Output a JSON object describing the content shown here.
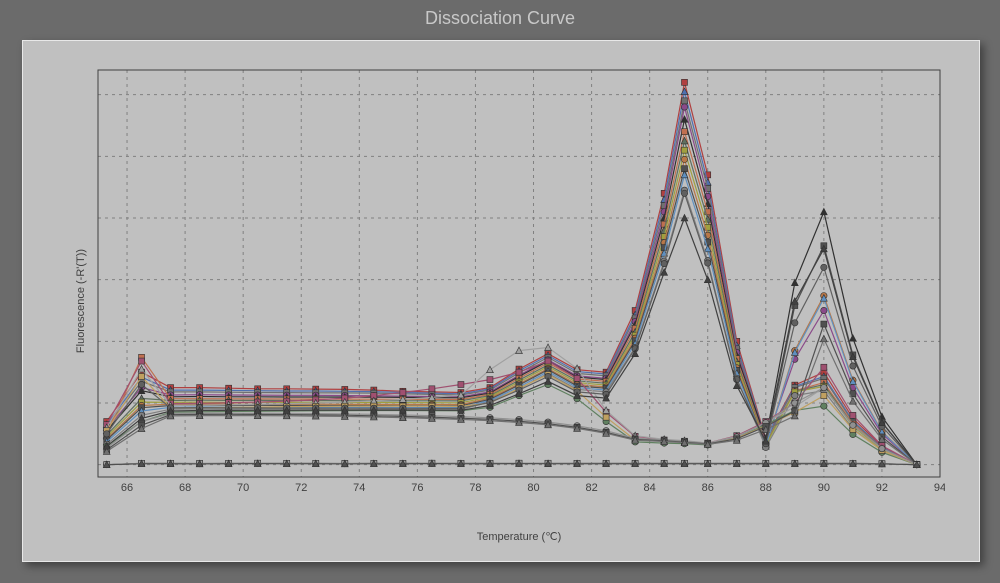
{
  "title": "Dissociation Curve",
  "axes": {
    "xlabel": "Temperature (℃)",
    "ylabel": "Fluorescence (-R'(T))",
    "xlim": [
      65,
      94
    ],
    "ylim": [
      -200,
      6400
    ],
    "xticks": [
      66,
      68,
      70,
      72,
      74,
      76,
      78,
      80,
      82,
      84,
      86,
      88,
      90,
      92,
      94
    ],
    "yticks": [
      0,
      1000,
      2000,
      3000,
      4000,
      5000,
      6000
    ],
    "grid_color": "#808080",
    "grid_dash": "3,4",
    "plot_bg": "#c0c0c0",
    "outer_bg": "#6b6b6b",
    "panel_bg": "#c0c0c0",
    "axis_color": "#404040",
    "tick_fontsize": 11,
    "label_fontsize": 11,
    "title_fontsize": 18,
    "title_color": "#c8c8c8"
  },
  "x": [
    65.3,
    66.5,
    67.5,
    68.5,
    69.5,
    70.5,
    71.5,
    72.5,
    73.5,
    74.5,
    75.5,
    76.5,
    77.5,
    78.5,
    79.5,
    80.5,
    81.5,
    82.5,
    83.5,
    84.5,
    85.2,
    86.0,
    87.0,
    88.0,
    89.0,
    90.0,
    91.0,
    92.0,
    93.2
  ],
  "series": [
    {
      "color": "#b04040",
      "marker": "sq",
      "y": [
        700,
        1500,
        1250,
        1250,
        1240,
        1230,
        1230,
        1225,
        1220,
        1210,
        1190,
        1180,
        1170,
        1250,
        1550,
        1800,
        1540,
        1500,
        2500,
        4400,
        6200,
        4700,
        2000,
        420,
        1290,
        1500,
        750,
        300,
        0
      ]
    },
    {
      "color": "#5070b0",
      "marker": "tri",
      "y": [
        650,
        1420,
        1210,
        1210,
        1205,
        1200,
        1195,
        1195,
        1190,
        1185,
        1170,
        1160,
        1150,
        1230,
        1520,
        1770,
        1510,
        1470,
        2430,
        4300,
        6050,
        4580,
        1930,
        400,
        1270,
        1430,
        710,
        280,
        0
      ]
    },
    {
      "color": "#707070",
      "marker": "sq",
      "y": [
        620,
        1350,
        1180,
        1180,
        1175,
        1170,
        1168,
        1165,
        1163,
        1160,
        1150,
        1140,
        1130,
        1210,
        1490,
        1740,
        1480,
        1440,
        2380,
        4200,
        5900,
        4480,
        1880,
        380,
        1250,
        1400,
        690,
        270,
        0
      ]
    },
    {
      "color": "#8a4a8a",
      "marker": "circ",
      "y": [
        580,
        1250,
        1130,
        1135,
        1130,
        1128,
        1125,
        1125,
        1120,
        1118,
        1110,
        1105,
        1100,
        1180,
        1450,
        1700,
        1440,
        1400,
        2320,
        4100,
        5800,
        4350,
        1820,
        360,
        1710,
        2500,
        1250,
        500,
        0
      ]
    },
    {
      "color": "#303030",
      "marker": "tri",
      "y": [
        550,
        1200,
        1100,
        1105,
        1100,
        1100,
        1098,
        1098,
        1095,
        1095,
        1090,
        1088,
        1085,
        1160,
        1430,
        1680,
        1420,
        1380,
        2270,
        4000,
        5600,
        4230,
        1770,
        420,
        2950,
        4100,
        2050,
        780,
        0
      ]
    },
    {
      "color": "#c07050",
      "marker": "sq",
      "y": [
        510,
        1740,
        1070,
        1070,
        1068,
        1067,
        1065,
        1065,
        1063,
        1062,
        1060,
        1058,
        1056,
        1140,
        1400,
        1650,
        1390,
        1350,
        2210,
        3900,
        5400,
        4100,
        1720,
        340,
        1200,
        1330,
        660,
        260,
        0
      ]
    },
    {
      "color": "#607060",
      "marker": "tri",
      "y": [
        480,
        1074,
        1040,
        1045,
        1042,
        1042,
        1040,
        1040,
        1038,
        1038,
        1036,
        1035,
        1034,
        1120,
        1370,
        1620,
        1360,
        1320,
        2150,
        3800,
        5250,
        3980,
        1670,
        330,
        1190,
        1300,
        640,
        255,
        0
      ]
    },
    {
      "color": "#a0a040",
      "marker": "sq",
      "y": [
        450,
        1014,
        1010,
        1015,
        1012,
        1012,
        1010,
        1010,
        1008,
        1008,
        1006,
        1005,
        1004,
        1100,
        1340,
        1590,
        1330,
        1290,
        2100,
        3700,
        5100,
        3850,
        1620,
        320,
        1180,
        1270,
        620,
        250,
        0
      ]
    },
    {
      "color": "#b87848",
      "marker": "circ",
      "y": [
        420,
        960,
        980,
        985,
        982,
        982,
        980,
        980,
        978,
        978,
        976,
        975,
        974,
        1080,
        1310,
        1560,
        1300,
        1260,
        2050,
        3600,
        4950,
        3720,
        1570,
        310,
        1850,
        2740,
        1370,
        540,
        0
      ]
    },
    {
      "color": "#505050",
      "marker": "sq",
      "y": [
        400,
        924,
        960,
        965,
        963,
        962,
        960,
        960,
        958,
        958,
        956,
        955,
        955,
        1060,
        1290,
        1540,
        1275,
        1240,
        2010,
        3520,
        4800,
        3610,
        1530,
        300,
        2580,
        3550,
        1780,
        690,
        0
      ]
    },
    {
      "color": "#6090c0",
      "marker": "tri",
      "y": [
        370,
        870,
        930,
        935,
        933,
        932,
        930,
        930,
        928,
        928,
        926,
        925,
        925,
        1040,
        1260,
        1510,
        1250,
        1210,
        1960,
        3430,
        4700,
        3500,
        1480,
        300,
        1820,
        2700,
        1350,
        530,
        0
      ]
    },
    {
      "color": "#808080",
      "marker": "circ",
      "y": [
        330,
        800,
        900,
        905,
        903,
        902,
        900,
        900,
        898,
        898,
        896,
        895,
        895,
        1020,
        1230,
        1480,
        1220,
        1180,
        1900,
        3300,
        4450,
        3310,
        1400,
        280,
        1120,
        1200,
        580,
        230,
        0
      ]
    },
    {
      "color": "#a05070",
      "marker": "sq",
      "y": [
        650,
        1680,
        990,
        995,
        1005,
        1015,
        1030,
        1050,
        1080,
        1120,
        1170,
        1230,
        1300,
        1380,
        1500,
        1680,
        1400,
        850,
        460,
        400,
        380,
        350,
        470,
        700,
        1000,
        1580,
        800,
        310,
        0
      ]
    },
    {
      "color": "#a0a0a0",
      "marker": "tri",
      "y": [
        600,
        1550,
        960,
        965,
        972,
        980,
        990,
        1000,
        1015,
        1035,
        1060,
        1090,
        1130,
        1540,
        1850,
        1900,
        1560,
        880,
        470,
        410,
        390,
        350,
        460,
        680,
        940,
        1250,
        640,
        260,
        0
      ]
    },
    {
      "color": "#608060",
      "marker": "circ",
      "y": [
        300,
        700,
        850,
        858,
        862,
        866,
        870,
        874,
        876,
        878,
        878,
        876,
        874,
        930,
        1120,
        1300,
        1070,
        700,
        370,
        350,
        340,
        320,
        430,
        650,
        880,
        950,
        490,
        200,
        0
      ]
    },
    {
      "color": "#c0a060",
      "marker": "sq",
      "y": [
        550,
        1430,
        920,
        925,
        930,
        934,
        940,
        945,
        948,
        950,
        950,
        948,
        945,
        1000,
        1240,
        1460,
        1200,
        770,
        400,
        380,
        370,
        340,
        430,
        630,
        850,
        1120,
        570,
        230,
        0
      ]
    },
    {
      "color": "#909090",
      "marker": "circ",
      "y": [
        270,
        700,
        830,
        835,
        835,
        834,
        832,
        828,
        822,
        815,
        805,
        794,
        780,
        760,
        730,
        690,
        630,
        550,
        430,
        400,
        380,
        345,
        450,
        680,
        1000,
        1250,
        640,
        260,
        0
      ]
    },
    {
      "color": "#505050",
      "marker": "sq",
      "y": [
        240,
        640,
        810,
        815,
        816,
        815,
        812,
        808,
        802,
        793,
        782,
        769,
        754,
        735,
        705,
        665,
        605,
        525,
        410,
        385,
        365,
        335,
        420,
        620,
        870,
        2280,
        1150,
        450,
        0
      ]
    },
    {
      "color": "#707070",
      "marker": "tri",
      "y": [
        215,
        585,
        790,
        795,
        796,
        795,
        792,
        788,
        782,
        773,
        762,
        749,
        734,
        715,
        684,
        646,
        588,
        509,
        398,
        375,
        356,
        328,
        395,
        570,
        790,
        2040,
        1030,
        410,
        0
      ]
    },
    {
      "color": "#606060",
      "marker": "circ",
      "y": [
        500,
        1300,
        920,
        925,
        922,
        920,
        918,
        918,
        916,
        915,
        914,
        913,
        912,
        1010,
        1210,
        1430,
        1180,
        1140,
        1880,
        3260,
        4400,
        3270,
        1380,
        340,
        2300,
        3200,
        1600,
        620,
        0
      ]
    },
    {
      "color": "#404040",
      "marker": "tri",
      "y": [
        300,
        750,
        870,
        878,
        880,
        882,
        882,
        884,
        884,
        885,
        885,
        884,
        882,
        960,
        1150,
        1350,
        1120,
        1080,
        1800,
        3120,
        4000,
        3000,
        1280,
        380,
        2650,
        3500,
        1750,
        680,
        0
      ]
    },
    {
      "color": "#404040",
      "marker": "sq",
      "y": [
        0,
        20,
        20,
        18,
        20,
        22,
        20,
        20,
        18,
        20,
        20,
        22,
        20,
        20,
        22,
        21,
        20,
        20,
        20,
        20,
        20,
        20,
        20,
        20,
        20,
        20,
        20,
        15,
        0
      ]
    },
    {
      "color": "#707070",
      "marker": "circ",
      "y": [
        0,
        18,
        18,
        17,
        18,
        20,
        18,
        18,
        17,
        18,
        18,
        20,
        18,
        18,
        20,
        19,
        18,
        18,
        18,
        18,
        18,
        18,
        18,
        18,
        18,
        18,
        18,
        14,
        0
      ]
    },
    {
      "color": "#a0a0a0",
      "marker": "sq",
      "y": [
        0,
        22,
        22,
        20,
        22,
        24,
        22,
        22,
        20,
        22,
        22,
        24,
        22,
        22,
        24,
        23,
        22,
        22,
        22,
        22,
        22,
        22,
        22,
        22,
        22,
        22,
        22,
        16,
        0
      ]
    },
    {
      "color": "#505050",
      "marker": "tri",
      "y": [
        0,
        15,
        16,
        14,
        15,
        17,
        15,
        15,
        14,
        15,
        15,
        17,
        15,
        15,
        17,
        16,
        15,
        15,
        15,
        15,
        15,
        15,
        15,
        15,
        15,
        15,
        15,
        12,
        0
      ]
    }
  ]
}
